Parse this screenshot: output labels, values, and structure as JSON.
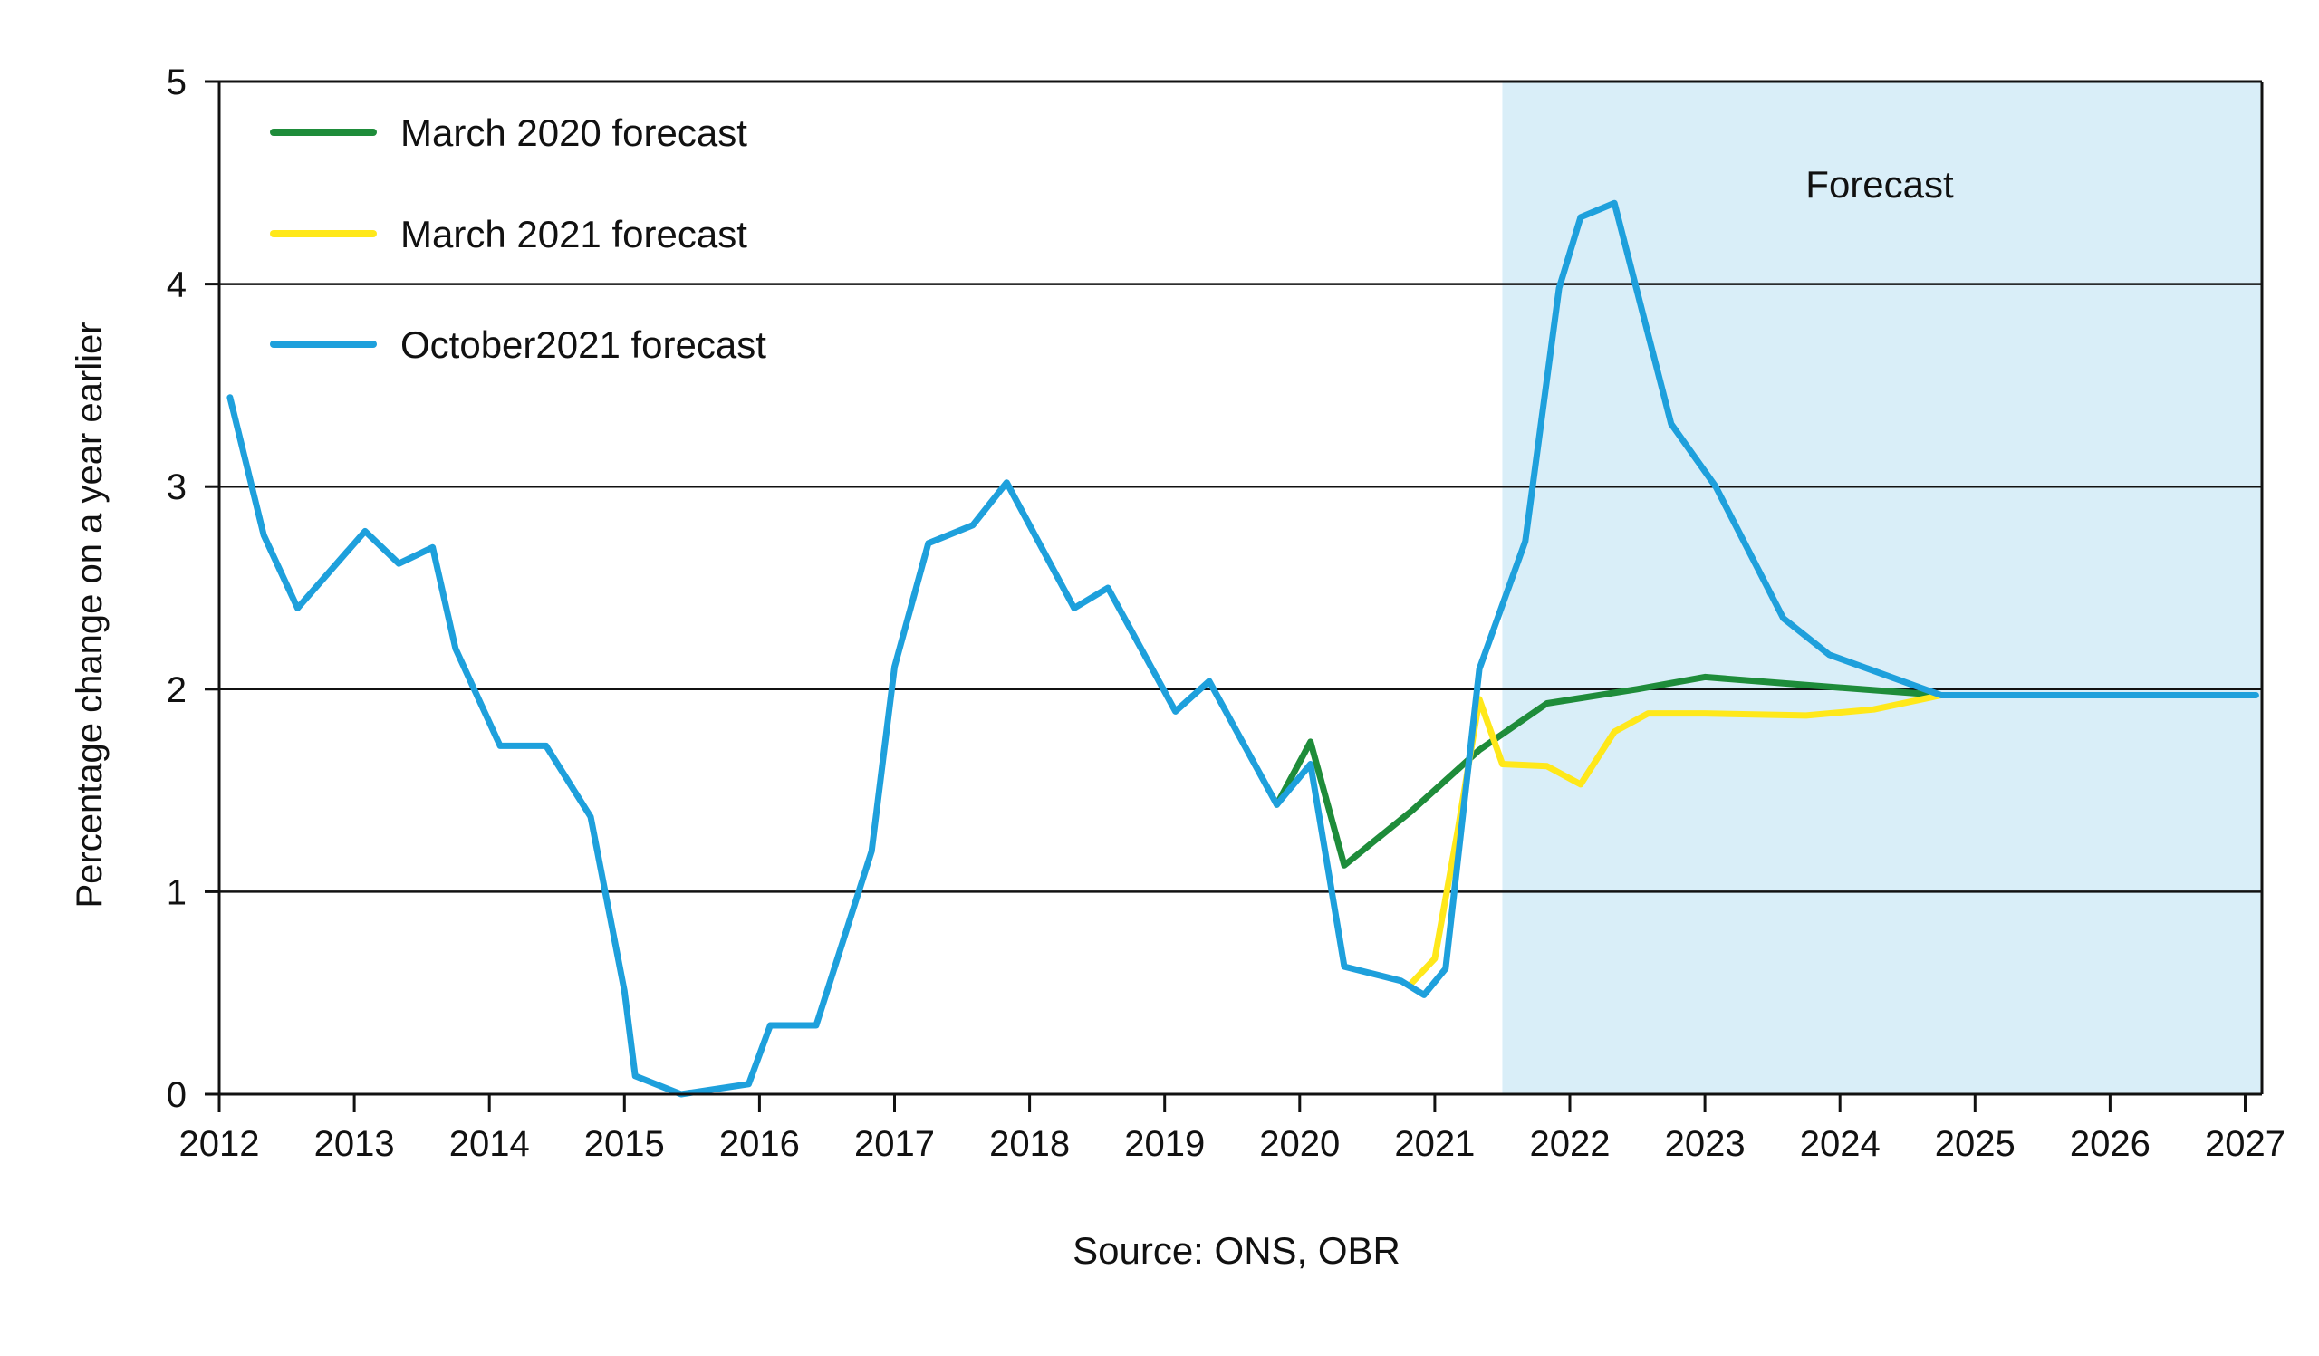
{
  "chart_data": {
    "type": "line",
    "ylabel": "Percentage change on a year earlier",
    "source": "Source: ONS, OBR",
    "forecast_band": {
      "label": "Forecast",
      "start": 2021.5,
      "end": 2027.25,
      "color": "#d9eef8"
    },
    "xlim": [
      2012,
      2027.25
    ],
    "ylim": [
      0,
      5
    ],
    "x_ticks": [
      2012,
      2013,
      2014,
      2015,
      2016,
      2017,
      2018,
      2019,
      2020,
      2021,
      2022,
      2023,
      2024,
      2025,
      2026,
      2027
    ],
    "x_tick_labels": [
      "2012",
      "2013",
      "2014",
      "2015",
      "2016",
      "2017",
      "2018",
      "2019",
      "2020",
      "2021",
      "2022",
      "2023",
      "2024",
      "2025",
      "2026",
      "2027"
    ],
    "y_ticks": [
      0,
      1,
      2,
      3,
      4,
      5
    ],
    "y_tick_labels": [
      "0",
      "1",
      "2",
      "3",
      "4",
      "5"
    ],
    "grid": "horizontal",
    "legend_position": "top-left",
    "series": [
      {
        "name": "March 2020 forecast",
        "color": "#1e8c3a",
        "points": [
          [
            2019.83,
            1.43
          ],
          [
            2020.08,
            1.74
          ],
          [
            2020.33,
            1.13
          ],
          [
            2020.83,
            1.4
          ],
          [
            2021.33,
            1.7
          ],
          [
            2021.83,
            1.93
          ],
          [
            2022.5,
            2.0
          ],
          [
            2023.0,
            2.06
          ],
          [
            2023.75,
            2.02
          ],
          [
            2024.75,
            1.97
          ]
        ]
      },
      {
        "name": "March 2021 forecast",
        "color": "#ffe81a",
        "points": [
          [
            2020.83,
            0.55
          ],
          [
            2021.0,
            0.67
          ],
          [
            2021.17,
            1.3
          ],
          [
            2021.33,
            1.95
          ],
          [
            2021.5,
            1.63
          ],
          [
            2021.83,
            1.62
          ],
          [
            2022.08,
            1.53
          ],
          [
            2022.33,
            1.79
          ],
          [
            2022.58,
            1.88
          ],
          [
            2023.0,
            1.88
          ],
          [
            2023.75,
            1.87
          ],
          [
            2024.25,
            1.9
          ],
          [
            2024.75,
            1.97
          ]
        ]
      },
      {
        "name": "October2021 forecast",
        "color": "#1ea0dc",
        "points": [
          [
            2012.08,
            3.44
          ],
          [
            2012.33,
            2.76
          ],
          [
            2012.58,
            2.4
          ],
          [
            2013.08,
            2.78
          ],
          [
            2013.33,
            2.62
          ],
          [
            2013.58,
            2.7
          ],
          [
            2013.75,
            2.2
          ],
          [
            2014.08,
            1.72
          ],
          [
            2014.42,
            1.72
          ],
          [
            2014.75,
            1.37
          ],
          [
            2015.0,
            0.51
          ],
          [
            2015.08,
            0.09
          ],
          [
            2015.42,
            0.0
          ],
          [
            2015.92,
            0.05
          ],
          [
            2016.08,
            0.34
          ],
          [
            2016.42,
            0.34
          ],
          [
            2016.83,
            1.2
          ],
          [
            2017.0,
            2.11
          ],
          [
            2017.25,
            2.72
          ],
          [
            2017.58,
            2.81
          ],
          [
            2017.83,
            3.02
          ],
          [
            2018.33,
            2.4
          ],
          [
            2018.58,
            2.5
          ],
          [
            2019.08,
            1.89
          ],
          [
            2019.33,
            2.04
          ],
          [
            2019.83,
            1.43
          ],
          [
            2020.08,
            1.63
          ],
          [
            2020.33,
            0.63
          ],
          [
            2020.75,
            0.56
          ],
          [
            2020.92,
            0.49
          ],
          [
            2021.08,
            0.62
          ],
          [
            2021.33,
            2.1
          ],
          [
            2021.67,
            2.73
          ],
          [
            2021.92,
            3.98
          ],
          [
            2022.08,
            4.33
          ],
          [
            2022.33,
            4.4
          ],
          [
            2022.75,
            3.31
          ],
          [
            2023.08,
            3.0
          ],
          [
            2023.58,
            2.35
          ],
          [
            2023.92,
            2.17
          ],
          [
            2024.75,
            1.97
          ],
          [
            2027.08,
            1.97
          ]
        ]
      }
    ]
  }
}
